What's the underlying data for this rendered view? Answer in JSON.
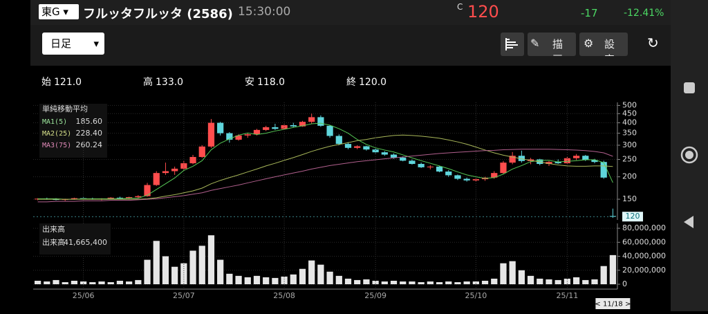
{
  "header": {
    "market": "東G",
    "name": "フルッタフルッタ (2586)",
    "time": "15:30:00",
    "price_prefix": "C",
    "price": 120,
    "change": -17,
    "change_pct": {
      "value": -12.41,
      "label": "-12.41%"
    }
  },
  "toolbar": {
    "period": "日足",
    "draw": "描画",
    "settings": "設定"
  },
  "ohlc": {
    "labels": [
      "始",
      "高",
      "安",
      "終"
    ],
    "values": [
      121,
      133,
      118,
      120
    ],
    "value_labels": [
      "121.0",
      "133.0",
      "118.0",
      "120.0"
    ]
  },
  "chart_data": [
    {
      "type": "candlestick",
      "legend_title": "単純移動平均",
      "log_scale": true,
      "grid": true,
      "up_color": "#ff4d4d",
      "down_color": "#5fd6dc",
      "last_price": 120,
      "ylim": [
        115,
        520
      ],
      "yticks": [
        500,
        450,
        400,
        350,
        300,
        250,
        200,
        150
      ],
      "candles": [
        [
          150,
          152,
          148,
          151
        ],
        [
          151,
          153,
          149,
          150
        ],
        [
          150,
          152,
          148,
          149
        ],
        [
          149,
          151,
          147,
          150
        ],
        [
          150,
          153,
          149,
          152
        ],
        [
          152,
          154,
          150,
          151
        ],
        [
          151,
          153,
          149,
          150
        ],
        [
          150,
          152,
          148,
          151
        ],
        [
          151,
          154,
          150,
          153
        ],
        [
          153,
          155,
          151,
          152
        ],
        [
          152,
          155,
          150,
          154
        ],
        [
          154,
          158,
          152,
          156
        ],
        [
          156,
          185,
          155,
          180
        ],
        [
          180,
          215,
          178,
          210
        ],
        [
          210,
          240,
          205,
          215
        ],
        [
          215,
          228,
          205,
          222
        ],
        [
          222,
          245,
          218,
          238
        ],
        [
          238,
          265,
          235,
          258
        ],
        [
          258,
          300,
          255,
          295
        ],
        [
          295,
          420,
          290,
          400
        ],
        [
          400,
          405,
          340,
          350
        ],
        [
          350,
          355,
          310,
          322
        ],
        [
          322,
          345,
          318,
          340
        ],
        [
          340,
          350,
          330,
          345
        ],
        [
          345,
          370,
          340,
          365
        ],
        [
          365,
          385,
          360,
          378
        ],
        [
          378,
          395,
          365,
          370
        ],
        [
          370,
          392,
          365,
          388
        ],
        [
          388,
          400,
          378,
          382
        ],
        [
          382,
          410,
          380,
          405
        ],
        [
          405,
          450,
          395,
          430
        ],
        [
          430,
          440,
          380,
          385
        ],
        [
          385,
          390,
          330,
          338
        ],
        [
          338,
          345,
          300,
          305
        ],
        [
          305,
          312,
          285,
          290
        ],
        [
          290,
          300,
          285,
          296
        ],
        [
          296,
          298,
          280,
          284
        ],
        [
          284,
          288,
          270,
          274
        ],
        [
          274,
          278,
          262,
          266
        ],
        [
          266,
          270,
          252,
          256
        ],
        [
          256,
          260,
          244,
          246
        ],
        [
          246,
          250,
          234,
          236
        ],
        [
          236,
          240,
          224,
          226
        ],
        [
          226,
          232,
          220,
          228
        ],
        [
          228,
          230,
          212,
          214
        ],
        [
          214,
          218,
          200,
          204
        ],
        [
          204,
          206,
          192,
          195
        ],
        [
          195,
          198,
          188,
          191
        ],
        [
          191,
          196,
          188,
          194
        ],
        [
          194,
          200,
          190,
          198
        ],
        [
          198,
          215,
          195,
          210
        ],
        [
          210,
          245,
          208,
          240
        ],
        [
          240,
          275,
          235,
          262
        ],
        [
          262,
          280,
          240,
          245
        ],
        [
          245,
          255,
          235,
          250
        ],
        [
          250,
          252,
          232,
          236
        ],
        [
          236,
          245,
          230,
          242
        ],
        [
          242,
          250,
          236,
          238
        ],
        [
          238,
          258,
          236,
          254
        ],
        [
          254,
          268,
          248,
          262
        ],
        [
          262,
          265,
          245,
          248
        ],
        [
          248,
          252,
          238,
          242
        ],
        [
          242,
          246,
          195,
          198
        ],
        [
          121,
          133,
          118,
          120
        ]
      ],
      "series": [
        {
          "name": "MA1(5)",
          "color": "#56c956",
          "label_color": "#9ee89e",
          "value_label": "185.60",
          "values": [
            151,
            151,
            151,
            150,
            150,
            151,
            151,
            151,
            151,
            151,
            152,
            152,
            158,
            170,
            183,
            197,
            217,
            229,
            246,
            283,
            308,
            325,
            341,
            351,
            344,
            350,
            360,
            368,
            377,
            385,
            395,
            398,
            388,
            371,
            350,
            323,
            303,
            290,
            282,
            275,
            265,
            255,
            246,
            238,
            230,
            222,
            213,
            205,
            200,
            196,
            198,
            207,
            221,
            231,
            243,
            247,
            247,
            242,
            244,
            246,
            249,
            249,
            240,
            185.6
          ]
        },
        {
          "name": "MA2(25)",
          "color": "#a9b85a",
          "label_color": "#d6e08a",
          "value_label": "228.40",
          "values": [
            150,
            150,
            150,
            150,
            150,
            150,
            150,
            150,
            150,
            150,
            150,
            150,
            151,
            153,
            156,
            159,
            163,
            167,
            173,
            183,
            191,
            198,
            205,
            213,
            221,
            230,
            238,
            247,
            256,
            266,
            277,
            287,
            296,
            303,
            310,
            318,
            323,
            330,
            335,
            340,
            342,
            340,
            337,
            333,
            328,
            321,
            313,
            304,
            293,
            282,
            272,
            264,
            258,
            252,
            247,
            242,
            237,
            233,
            230,
            229,
            229,
            230,
            230,
            228.4
          ]
        },
        {
          "name": "MA3(75)",
          "color": "#b2608e",
          "label_color": "#e08ab8",
          "value_label": "260.24",
          "values": [
            145,
            145,
            146,
            146,
            146,
            147,
            147,
            147,
            148,
            148,
            148,
            149,
            150,
            151,
            153,
            155,
            157,
            160,
            163,
            168,
            172,
            176,
            180,
            185,
            190,
            195,
            200,
            205,
            210,
            215,
            221,
            226,
            231,
            235,
            239,
            243,
            246,
            249,
            252,
            255,
            258,
            261,
            264,
            267,
            270,
            272,
            274,
            276,
            278,
            280,
            281,
            283,
            284,
            285,
            285,
            285,
            285,
            284,
            283,
            282,
            280,
            277,
            272,
            260.24
          ]
        }
      ]
    },
    {
      "type": "bar",
      "legend_title": "出来高",
      "legend_label": "出来高",
      "legend_value": {
        "value": 41665400,
        "label": "41,665,400"
      },
      "color": "#e6e6e6",
      "grid": true,
      "cursor_label": "< 11/18 >",
      "ylim": [
        0,
        87000000
      ],
      "yticks": [
        {
          "value": 80000000,
          "label": "80,000,000"
        },
        {
          "value": 60000000,
          "label": "60,000,000"
        },
        {
          "value": 40000000,
          "label": "40,000,000"
        },
        {
          "value": 20000000,
          "label": "20,000,000"
        },
        0
      ],
      "categories": [
        null,
        null,
        null,
        null,
        null,
        "25/06",
        null,
        null,
        null,
        null,
        null,
        null,
        null,
        null,
        null,
        null,
        "25/07",
        null,
        null,
        null,
        null,
        null,
        null,
        null,
        null,
        null,
        null,
        "25/08",
        null,
        null,
        null,
        null,
        null,
        null,
        null,
        null,
        null,
        "25/09",
        null,
        null,
        null,
        null,
        null,
        null,
        null,
        null,
        null,
        null,
        "25/10",
        null,
        null,
        null,
        null,
        null,
        null,
        null,
        null,
        null,
        "25/11",
        null,
        null,
        null,
        null,
        null
      ],
      "values": [
        5000000,
        4000000,
        6000000,
        3000000,
        5000000,
        4000000,
        3000000,
        4000000,
        3000000,
        5000000,
        4000000,
        6000000,
        35000000,
        62000000,
        40000000,
        25000000,
        30000000,
        48000000,
        55000000,
        70000000,
        35000000,
        15000000,
        12000000,
        10000000,
        12000000,
        10000000,
        9000000,
        11000000,
        14000000,
        22000000,
        34000000,
        28000000,
        18000000,
        12000000,
        8000000,
        6000000,
        7000000,
        5000000,
        4000000,
        5000000,
        4000000,
        4000000,
        3000000,
        4000000,
        3000000,
        4000000,
        3000000,
        4000000,
        4000000,
        5000000,
        8000000,
        30000000,
        33000000,
        20000000,
        12000000,
        8000000,
        7000000,
        6000000,
        8000000,
        10000000,
        6000000,
        7000000,
        26000000,
        41665400
      ]
    }
  ]
}
